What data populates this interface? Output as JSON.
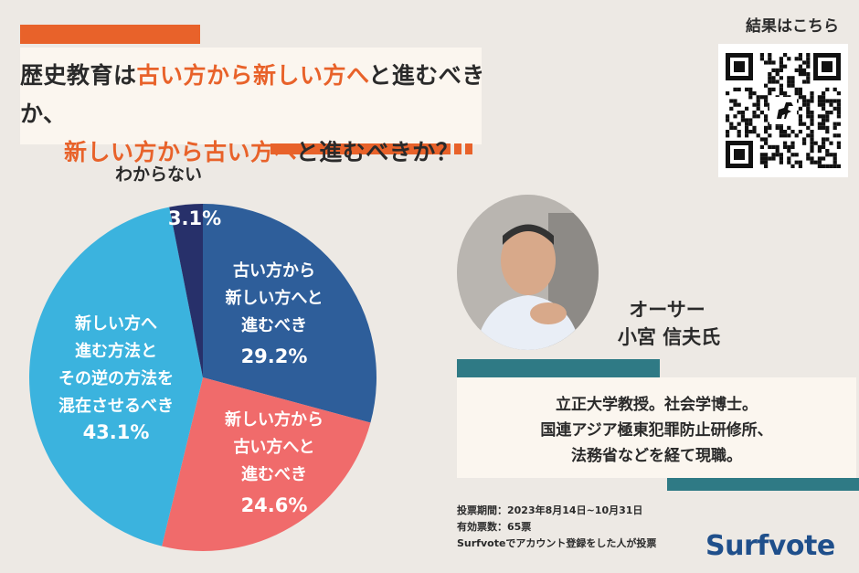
{
  "header": {
    "title_line1_prefix": "歴史教育は",
    "title_line1_hl1": "古い方から新しい方へ",
    "title_line1_suffix": "と進むべきか、",
    "title_line2_hl": "新しい方から古い方へ",
    "title_line2_suffix": "と進むべきか？",
    "result_label": "結果はこちら"
  },
  "chart_data": {
    "type": "pie",
    "slices": [
      {
        "label_lines": [
          "古い方から",
          "新しい方へと",
          "進むべき"
        ],
        "value": 29.2,
        "value_label": "29.2%",
        "color": "#2e5e9a"
      },
      {
        "label_lines": [
          "新しい方から",
          "古い方へと",
          "進むべき"
        ],
        "value": 24.6,
        "value_label": "24.6%",
        "color": "#f06b6b"
      },
      {
        "label_lines": [
          "新しい方へ",
          "進む方法と",
          "その逆の方法を",
          "混在させるべき"
        ],
        "value": 43.1,
        "value_label": "43.1%",
        "color": "#3bb3de"
      },
      {
        "label_lines": [
          "わからない"
        ],
        "value": 3.1,
        "value_label": "3.1%",
        "color": "#27306a"
      }
    ],
    "start": "12 o'clock",
    "direction": "clockwise"
  },
  "author": {
    "role": "オーサー",
    "name": "小宮 信夫氏",
    "bio_lines": [
      "立正大学教授。社会学博士。",
      "国連アジア極東犯罪防止研修所、",
      "法務省などを経て現職。"
    ]
  },
  "footer": {
    "period": "投票期間：2023年8月14日~10月31日",
    "votes": "有効票数：65票",
    "note": "Surfvoteでアカウント登録をした人が投票",
    "logo": "Surfvote"
  },
  "colors": {
    "accent": "#e8622a",
    "teal": "#2f7a85",
    "logo": "#1f4f8b"
  }
}
